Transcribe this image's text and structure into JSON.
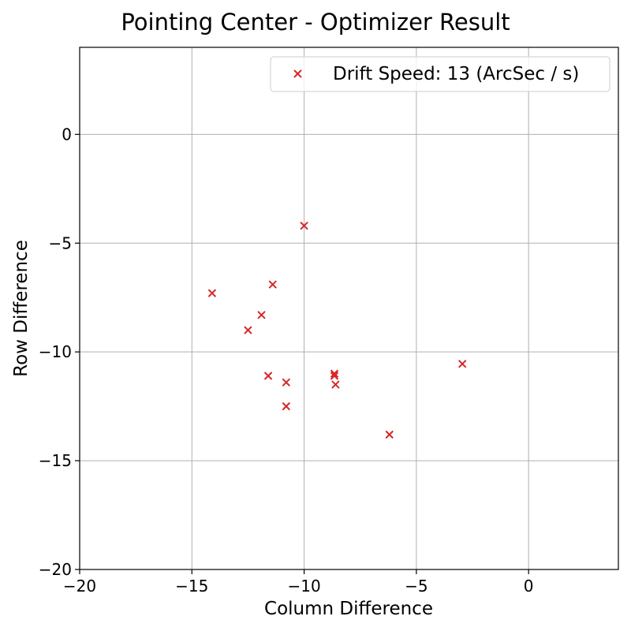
{
  "chart_data": {
    "type": "scatter",
    "title": "Pointing Center - Optimizer Result",
    "xlabel": "Column Difference",
    "ylabel": "Row Difference",
    "xlim": [
      -20,
      4
    ],
    "ylim": [
      -20,
      4
    ],
    "xticks": [
      -20,
      -15,
      -10,
      -5,
      0
    ],
    "yticks": [
      -20,
      -15,
      -10,
      -5,
      0
    ],
    "xtick_labels": [
      "−20",
      "−15",
      "−10",
      "−5",
      "0"
    ],
    "ytick_labels": [
      "−20",
      "−15",
      "−10",
      "−5",
      "0"
    ],
    "grid": true,
    "legend_position": "top-right",
    "series": [
      {
        "name": "Drift Speed: 13 (ArcSec / s)",
        "marker": "x",
        "color": "#d62728",
        "points": [
          {
            "x": -10.0,
            "y": -4.2
          },
          {
            "x": -14.1,
            "y": -7.3
          },
          {
            "x": -11.4,
            "y": -6.9
          },
          {
            "x": -11.9,
            "y": -8.3
          },
          {
            "x": -12.5,
            "y": -9.0
          },
          {
            "x": -11.6,
            "y": -11.1
          },
          {
            "x": -10.8,
            "y": -11.4
          },
          {
            "x": -10.8,
            "y": -12.5
          },
          {
            "x": -8.65,
            "y": -11.0
          },
          {
            "x": -8.65,
            "y": -11.1
          },
          {
            "x": -8.6,
            "y": -11.5
          },
          {
            "x": -2.95,
            "y": -10.55
          },
          {
            "x": -6.2,
            "y": -13.8
          }
        ]
      }
    ]
  }
}
